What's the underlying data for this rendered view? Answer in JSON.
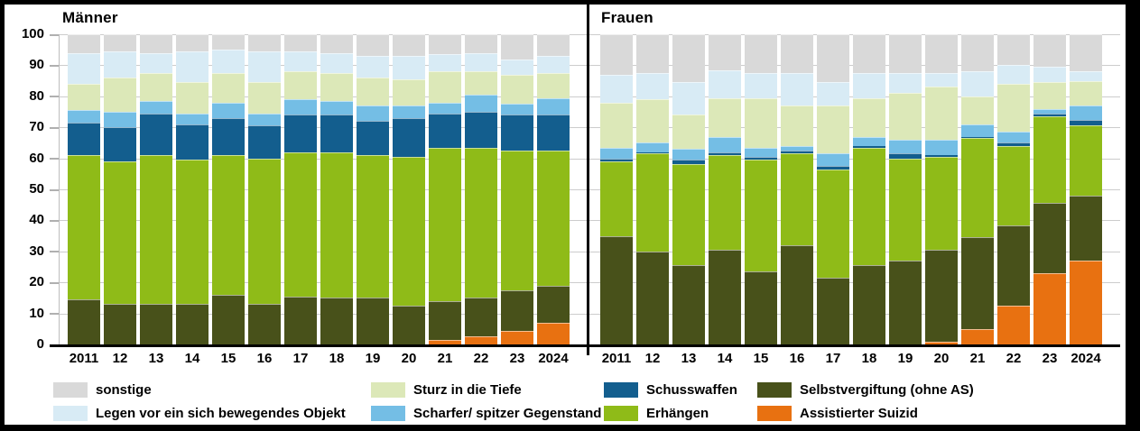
{
  "chart_data": {
    "type": "bar",
    "stacked": true,
    "unit": "percent",
    "ylim": [
      0,
      100
    ],
    "yticks": [
      0,
      10,
      20,
      30,
      40,
      50,
      60,
      70,
      80,
      90,
      100
    ],
    "grid": true,
    "legend_position": "bottom",
    "categories": [
      "2011",
      "12",
      "13",
      "14",
      "15",
      "16",
      "17",
      "18",
      "19",
      "20",
      "21",
      "22",
      "23",
      "2024"
    ],
    "series_order": [
      "assistierter-suizid",
      "selbstvergiftung",
      "erhaengen",
      "schusswaffen",
      "scharfer-spitzer-gegenstand",
      "sturz-in-die-tiefe",
      "legen-vor-objekt",
      "sonstige"
    ],
    "series_meta": {
      "sonstige": {
        "label": "sonstige",
        "color": "#d9d9d9"
      },
      "legen-vor-objekt": {
        "label": "Legen vor ein sich bewegendes Objekt",
        "color": "#d8ebf5"
      },
      "sturz-in-die-tiefe": {
        "label": "Sturz in die Tiefe",
        "color": "#dce8b8"
      },
      "scharfer-spitzer-gegenstand": {
        "label": "Scharfer/ spitzer Gegenstand",
        "color": "#74bee5"
      },
      "schusswaffen": {
        "label": "Schusswaffen",
        "color": "#135e8e"
      },
      "erhaengen": {
        "label": "Erhängen",
        "color": "#8fbb18"
      },
      "selbstvergiftung": {
        "label": "Selbstvergiftung (ohne AS)",
        "color": "#48511a"
      },
      "assistierter-suizid": {
        "label": "Assistierter Suizid",
        "color": "#e87111"
      }
    },
    "legend_columns": [
      [
        "sonstige",
        "legen-vor-objekt"
      ],
      [
        "sturz-in-die-tiefe",
        "scharfer-spitzer-gegenstand"
      ],
      [
        "schusswaffen",
        "erhaengen"
      ],
      [
        "selbstvergiftung",
        "assistierter-suizid"
      ]
    ],
    "panels": [
      {
        "title": "Männer",
        "values": {
          "assistierter-suizid": [
            0,
            0,
            0,
            0,
            0,
            0,
            0,
            0,
            0,
            0,
            1.5,
            2.5,
            4.5,
            7
          ],
          "selbstvergiftung": [
            14.5,
            13,
            13,
            13,
            16,
            13,
            15.5,
            15,
            15,
            12.5,
            12.5,
            12.5,
            13,
            12
          ],
          "erhaengen": [
            46.5,
            46,
            48,
            46.5,
            45,
            47,
            46.5,
            47,
            46,
            48,
            49.5,
            48.5,
            45,
            43.5
          ],
          "schusswaffen": [
            10.5,
            11,
            13.5,
            11.5,
            12,
            10.5,
            12,
            12,
            11,
            12.5,
            11,
            11.5,
            11.5,
            11.5
          ],
          "scharfer-spitzer-gegenstand": [
            4,
            5,
            4,
            3.5,
            5,
            4,
            5,
            4.5,
            5,
            4,
            3.5,
            5.5,
            3.5,
            5.5
          ],
          "sturz-in-die-tiefe": [
            8.5,
            11,
            9,
            10,
            9.5,
            10,
            9,
            9,
            9,
            8.5,
            10,
            7.5,
            9.5,
            8
          ],
          "legen-vor-objekt": [
            10,
            8.5,
            6.5,
            10,
            7.5,
            10,
            6.5,
            6.5,
            7,
            7.5,
            5.5,
            6,
            5,
            5.5
          ],
          "sonstige": [
            6,
            5.5,
            6,
            5.5,
            5,
            5.5,
            5.5,
            6,
            7,
            7,
            6.5,
            6,
            8,
            7
          ]
        }
      },
      {
        "title": "Frauen",
        "values": {
          "assistierter-suizid": [
            0,
            0,
            0,
            0,
            0,
            0,
            0,
            0,
            0,
            1,
            5,
            12.5,
            23,
            27
          ],
          "selbstvergiftung": [
            35,
            30,
            25.5,
            30.5,
            23.5,
            32,
            21.5,
            25.5,
            27,
            29.5,
            29.5,
            26,
            22.5,
            21
          ],
          "erhaengen": [
            24,
            31.5,
            32.5,
            30.5,
            36,
            29.5,
            35,
            38,
            33,
            30,
            32,
            25.5,
            28,
            22.5
          ],
          "schusswaffen": [
            1,
            0.5,
            1.5,
            1,
            1,
            1,
            1,
            0.5,
            1.5,
            0.5,
            0.5,
            1,
            1,
            2
          ],
          "scharfer-spitzer-gegenstand": [
            3.5,
            3,
            3.5,
            5,
            3,
            1.5,
            4,
            3,
            4.5,
            5,
            4,
            3.5,
            1.5,
            4.5
          ],
          "sturz-in-die-tiefe": [
            14.5,
            14,
            11,
            12.5,
            16,
            13,
            15.5,
            12.5,
            15,
            17,
            9,
            15.5,
            8.5,
            8
          ],
          "legen-vor-objekt": [
            9,
            8.5,
            10.5,
            9,
            8,
            10.5,
            7.5,
            8,
            6.5,
            4.5,
            8,
            6,
            5,
            3
          ],
          "sonstige": [
            13,
            12.5,
            15.5,
            11.5,
            12.5,
            12.5,
            15.5,
            12.5,
            12.5,
            12.5,
            12,
            10,
            10.5,
            12
          ]
        }
      }
    ]
  }
}
